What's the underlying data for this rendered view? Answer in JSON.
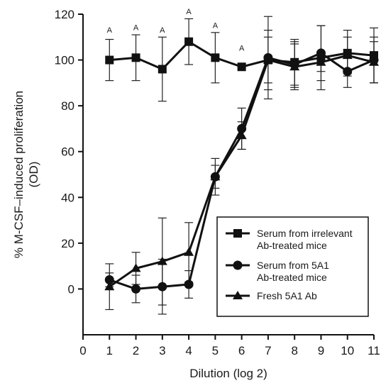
{
  "chart_data": {
    "type": "line",
    "xlabel": "Dilution (log 2)",
    "ylabel_lines": [
      "% M-CSF–induced proliferation",
      "(OD)"
    ],
    "xlim": [
      0,
      11
    ],
    "ylim": [
      -20,
      120
    ],
    "x_ticks": [
      0,
      1,
      2,
      3,
      4,
      5,
      6,
      7,
      8,
      9,
      10,
      11
    ],
    "y_ticks": [
      0,
      20,
      40,
      60,
      80,
      100,
      120
    ],
    "grid": false,
    "legend_position": "bottom-right",
    "series": [
      {
        "name_lines": [
          "Serum from irrelevant",
          "Ab-treated mice"
        ],
        "marker": "square",
        "x": [
          1,
          2,
          3,
          4,
          5,
          6,
          7,
          8,
          9,
          10,
          11
        ],
        "y": [
          100,
          101,
          96,
          108,
          101,
          97,
          100,
          99,
          101,
          103,
          102
        ],
        "err": [
          9,
          10,
          14,
          10,
          11,
          0,
          10,
          10,
          14,
          10,
          12
        ]
      },
      {
        "name_lines": [
          "Serum from 5A1",
          "Ab-treated mice"
        ],
        "marker": "circle",
        "x": [
          1,
          2,
          3,
          4,
          5,
          6,
          7,
          8,
          9,
          10,
          11
        ],
        "y": [
          4,
          0,
          1,
          2,
          49,
          70,
          101,
          98,
          103,
          95,
          100
        ],
        "err": [
          3,
          6,
          12,
          6,
          8,
          9,
          18,
          10,
          12,
          7,
          10
        ]
      },
      {
        "name_lines": [
          "Fresh 5A1 Ab"
        ],
        "marker": "triangle",
        "x": [
          1,
          2,
          3,
          4,
          5,
          6,
          7,
          8,
          9,
          10,
          11
        ],
        "y": [
          1,
          9,
          12,
          16,
          49,
          67,
          100,
          97,
          99,
          102,
          99
        ],
        "err": [
          10,
          7,
          19,
          13,
          5,
          6,
          13,
          10,
          4,
          8,
          9
        ]
      }
    ],
    "annotations": [
      {
        "text": "A",
        "x": 1,
        "y": 112
      },
      {
        "text": "A",
        "x": 2,
        "y": 113
      },
      {
        "text": "A",
        "x": 3,
        "y": 112
      },
      {
        "text": "A",
        "x": 4,
        "y": 120
      },
      {
        "text": "A",
        "x": 5,
        "y": 114
      },
      {
        "text": "A",
        "x": 6,
        "y": 104
      }
    ]
  }
}
